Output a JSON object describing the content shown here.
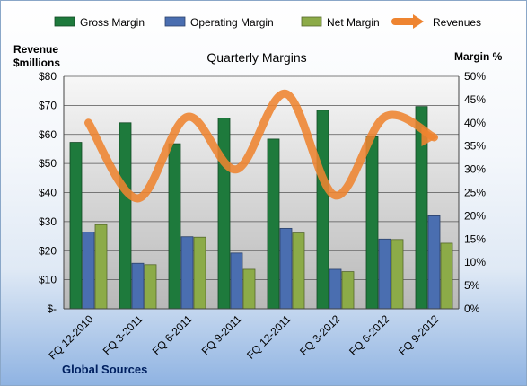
{
  "chart_data": {
    "type": "bar",
    "title": "Quarterly Margins",
    "left_axis_label_line1": "Revenue",
    "left_axis_label_line2": "$millions",
    "right_axis_label": "Margin %",
    "source": "Global Sources",
    "categories": [
      "FQ 12-2010",
      "FQ 3-2011",
      "FQ 6-2011",
      "FQ 9-2011",
      "FQ 12-2011",
      "FQ 3-2012",
      "FQ 6-2012",
      "FQ 9-2012"
    ],
    "left_ticks": [
      "$-",
      "$10",
      "$20",
      "$30",
      "$40",
      "$50",
      "$60",
      "$70",
      "$80"
    ],
    "right_ticks": [
      "0%",
      "5%",
      "10%",
      "15%",
      "20%",
      "25%",
      "30%",
      "35%",
      "40%",
      "45%",
      "50%"
    ],
    "ylim_left": [
      0,
      80
    ],
    "ylim_right": [
      0,
      50
    ],
    "grid": true,
    "legend_position": "top",
    "series": [
      {
        "name": "Gross Margin",
        "type": "bar",
        "axis": "right",
        "color": "#1e7a3c",
        "values": [
          35.8,
          40.0,
          35.5,
          41.0,
          36.5,
          42.7,
          37.0,
          43.5
        ]
      },
      {
        "name": "Operating Margin",
        "type": "bar",
        "axis": "right",
        "color": "#4a6eb0",
        "values": [
          16.5,
          9.8,
          15.5,
          12.0,
          17.3,
          8.5,
          15.0,
          20.0
        ]
      },
      {
        "name": "Net Margin",
        "type": "bar",
        "axis": "right",
        "color": "#8cab48",
        "values": [
          18.1,
          9.5,
          15.4,
          8.5,
          16.3,
          8.0,
          14.9,
          14.1
        ]
      },
      {
        "name": "Revenues",
        "type": "line",
        "axis": "left",
        "color": "#ee8430",
        "values": [
          64,
          38,
          66,
          48,
          74,
          39,
          66,
          59
        ]
      }
    ]
  }
}
